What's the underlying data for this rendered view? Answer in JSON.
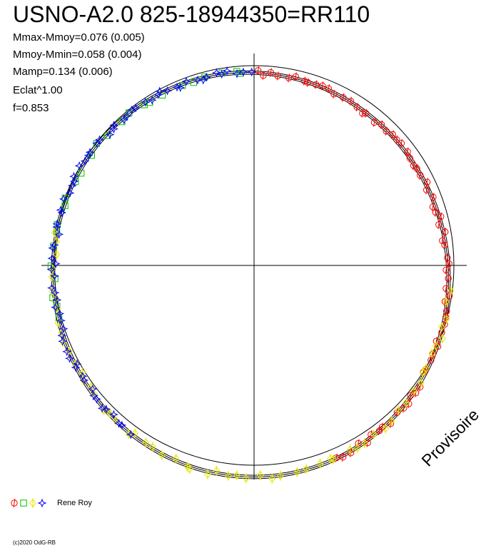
{
  "chart_data": {
    "type": "scatter",
    "title": "USNO-A2.0 825-18944350=RR110",
    "stats": [
      "Mmax-Mmoy=0.076 (0.005)",
      "Mmoy-Mmin=0.058 (0.004)",
      "Mamp=0.134 (0.006)",
      "Eclat^1.00",
      "f=0.853"
    ],
    "stamp": "Provisoire",
    "legend_label": "Rene Roy",
    "copyright": "(c)2020 OdG-RB",
    "projection": "polar",
    "phase_zero_at": "top",
    "marker_colors": [
      "#ff0000",
      "#00c000",
      "#ffff00",
      "#0000ff"
    ],
    "marker_shapes": [
      "circle",
      "square",
      "diamond",
      "star"
    ],
    "series": [
      {
        "color": "#ff0000",
        "shape": "circle",
        "phase_from": 0.0,
        "phase_to": 0.44,
        "count": 70
      },
      {
        "color": "#00c000",
        "shape": "square",
        "phase_from": 0.7,
        "phase_to": 1.0,
        "count": 26
      },
      {
        "color": "#ffff00",
        "shape": "diamond",
        "phase_from": 0.27,
        "phase_to": 0.78,
        "count": 60
      },
      {
        "color": "#0000ff",
        "shape": "star",
        "phase_from": 0.6,
        "phase_to": 1.0,
        "count": 70
      }
    ]
  }
}
